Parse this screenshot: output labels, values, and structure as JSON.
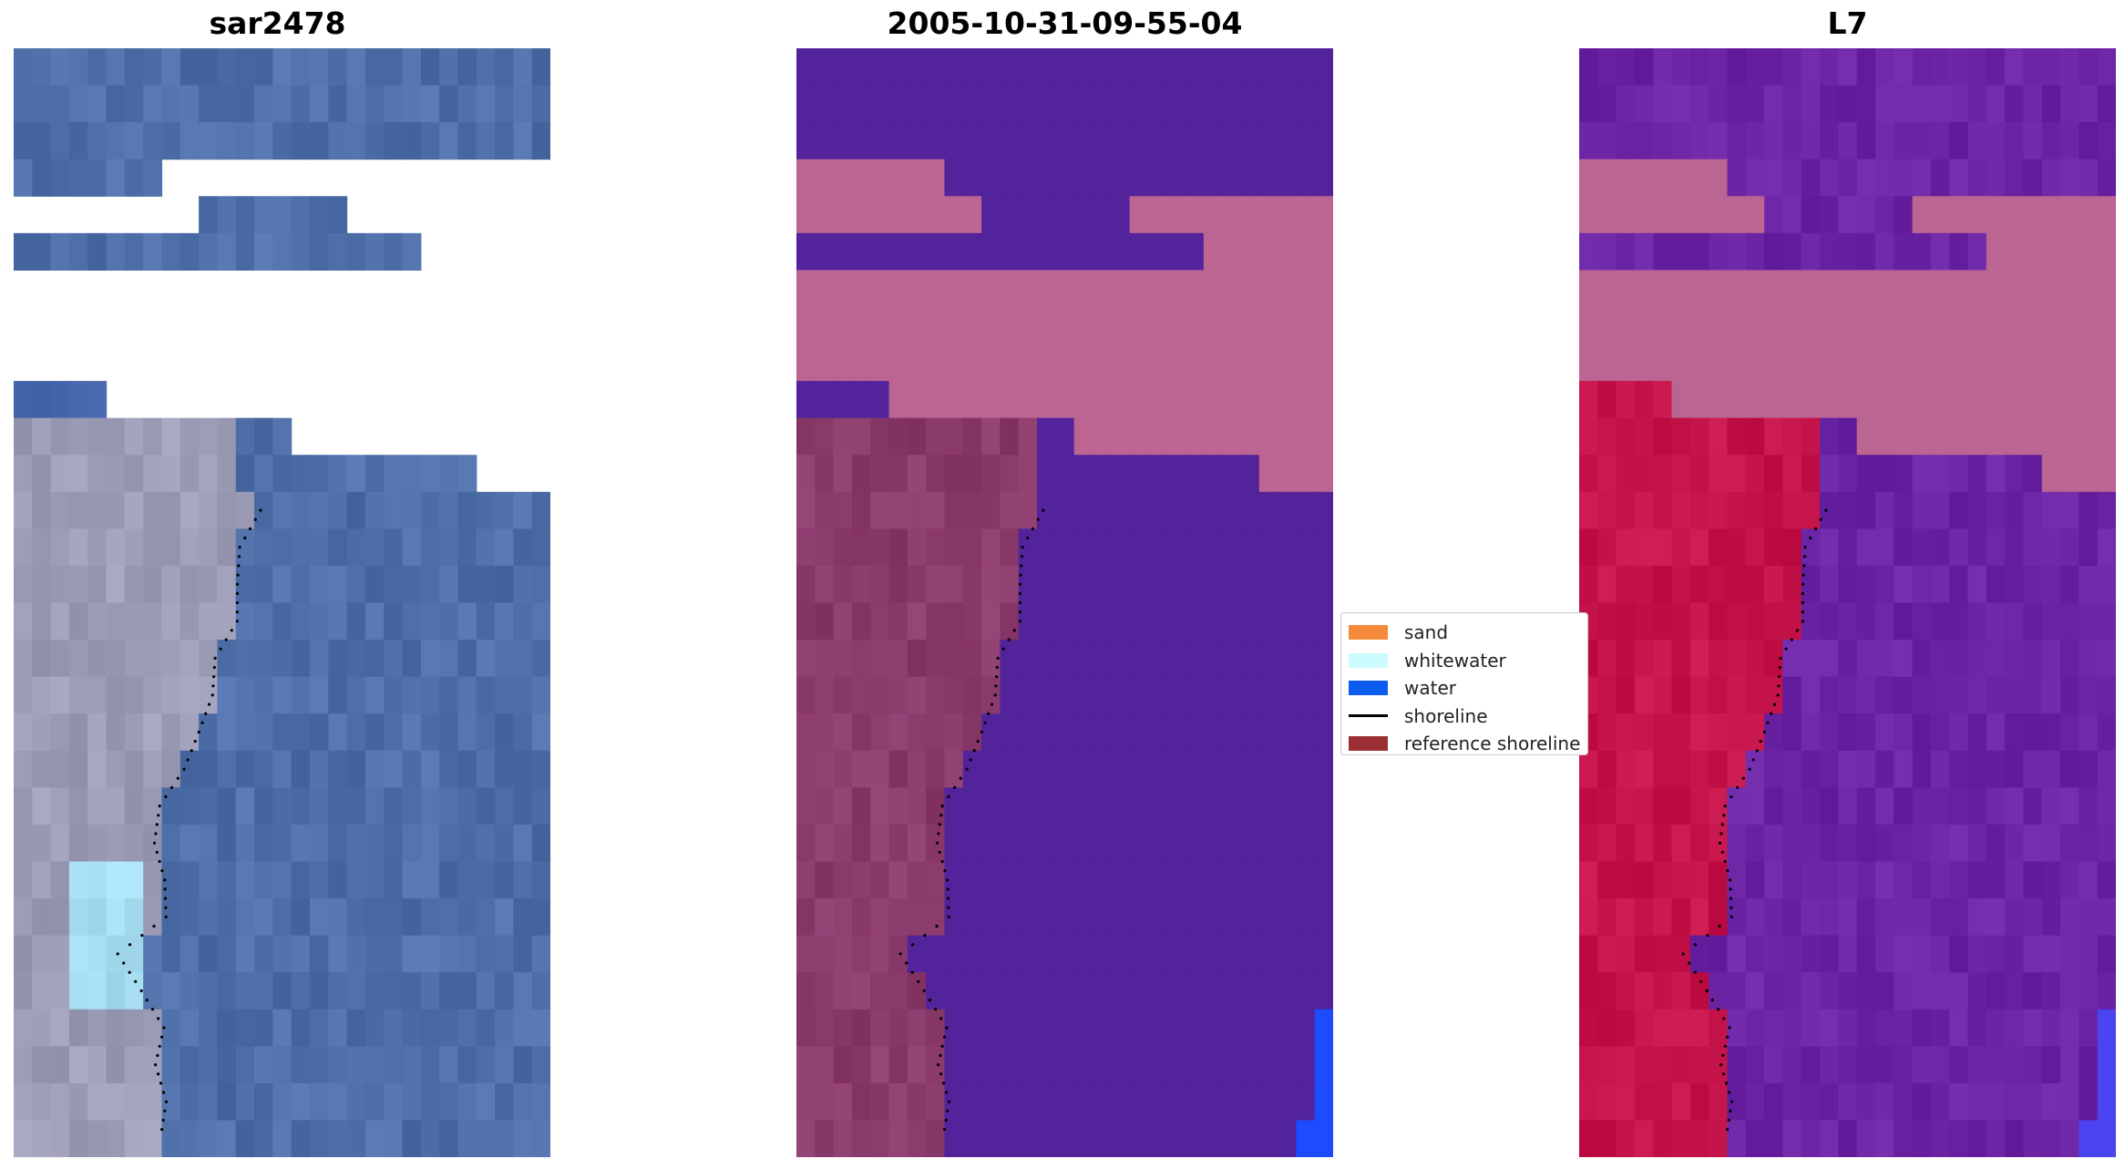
{
  "panels": [
    {
      "title": "sar2478",
      "view": "true-color"
    },
    {
      "title": "2005-10-31-09-55-04",
      "view": "classification"
    },
    {
      "title": "L7",
      "view": "false-color"
    }
  ],
  "legend": {
    "items": [
      {
        "label": "sand",
        "color": "#f58b3a",
        "kind": "patch"
      },
      {
        "label": "whitewater",
        "color": "#ccfcff",
        "kind": "patch"
      },
      {
        "label": "water",
        "color": "#0d5cf0",
        "kind": "patch"
      },
      {
        "label": "shoreline",
        "color": "#000000",
        "kind": "line"
      },
      {
        "label": "reference shoreline",
        "color": "#9c2f33",
        "kind": "patch"
      }
    ]
  },
  "colors": {
    "background": "#ffffff",
    "true_color_water": "#4f6fa8",
    "true_color_land": "#9e9db8",
    "true_color_whitewater": "#a8dff2",
    "classified_water": "#52239a",
    "classified_cloud": "#bc6593",
    "classified_land": "#8b3a6c",
    "classified_water_blue": "#1f4bff",
    "false_color_water": "#6b24a4",
    "false_color_cloud": "#bb6593",
    "false_color_land": "#c4144a",
    "shoreline": "#000000"
  }
}
